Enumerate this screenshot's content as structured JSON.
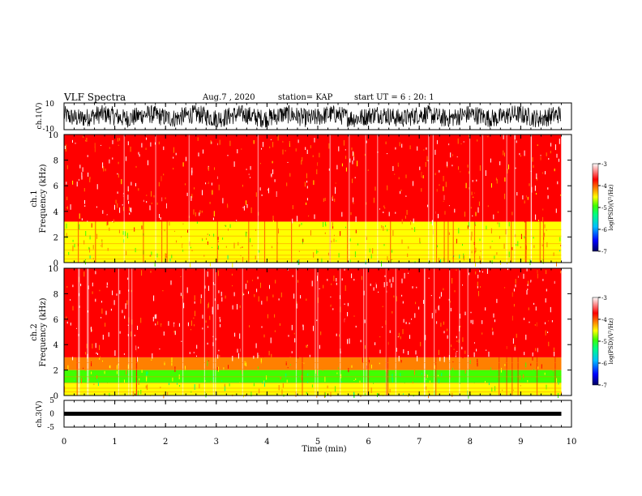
{
  "header": {
    "title": "VLF Spectra",
    "date": "Aug.7 , 2020",
    "station": "station= KAP",
    "start": "start UT = 6 : 20: 1"
  },
  "chart_data": [
    {
      "type": "line",
      "panel": "ch1_waveform",
      "ylabel": "ch.1(V)",
      "y_ticks": [
        "10",
        "-10"
      ],
      "ylim": [
        -10,
        10
      ],
      "xlim": [
        0,
        10
      ],
      "data_end_min": 9.8,
      "description_of_signal": "noisy waveform fluctuating roughly between -8 and 8 V"
    },
    {
      "type": "heatmap",
      "panel": "ch1_spectrogram",
      "ylabel_top": "ch.1",
      "ylabel_bottom": "Frequency (kHz)",
      "y_ticks": [
        "0",
        "2",
        "4",
        "6",
        "8",
        "10"
      ],
      "ylim": [
        0,
        10
      ],
      "xlim": [
        0,
        10
      ],
      "data_end_min": 9.8,
      "colorbar": {
        "label": "log(PSD)(V²/Hz)",
        "ticks": [
          "-3",
          "-4",
          "-5",
          "-6",
          "-7"
        ],
        "range": [
          -7,
          -3
        ]
      },
      "bands_khz": [
        {
          "from": 0.0,
          "to": 1.2,
          "level": -4.6
        },
        {
          "from": 1.2,
          "to": 3.2,
          "level": -4.5
        },
        {
          "from": 3.2,
          "to": 10.0,
          "level": -3.7
        }
      ]
    },
    {
      "type": "heatmap",
      "panel": "ch2_spectrogram",
      "ylabel_top": "ch.2",
      "ylabel_bottom": "Frequency (kHz)",
      "y_ticks": [
        "0",
        "2",
        "4",
        "6",
        "8",
        "10"
      ],
      "ylim": [
        0,
        10
      ],
      "xlim": [
        0,
        10
      ],
      "data_end_min": 9.8,
      "colorbar": {
        "label": "log(PSD)(V²/Hz)",
        "ticks": [
          "-3",
          "-4",
          "-5",
          "-6",
          "-7"
        ],
        "range": [
          -7,
          -3
        ]
      },
      "bands_khz": [
        {
          "from": 0.0,
          "to": 1.0,
          "level": -4.6
        },
        {
          "from": 1.0,
          "to": 2.0,
          "level": -4.9
        },
        {
          "from": 2.0,
          "to": 3.0,
          "level": -4.3
        },
        {
          "from": 3.0,
          "to": 10.0,
          "level": -3.5
        }
      ]
    },
    {
      "type": "line",
      "panel": "ch3_waveform",
      "ylabel": "ch.3(V)",
      "y_ticks": [
        "5",
        "0",
        "-5"
      ],
      "ylim": [
        -5,
        5
      ],
      "xlim": [
        0,
        10
      ],
      "data_end_min": 9.8,
      "level_v": 0,
      "description_of_signal": "flat dense trace near 0 V with small spread"
    }
  ],
  "x_axis": {
    "label": "Time (min)",
    "ticks": [
      "0",
      "1",
      "2",
      "3",
      "4",
      "5",
      "6",
      "7",
      "8",
      "9",
      "10"
    ]
  },
  "colors": {
    "cmap": [
      "#000080",
      "#0000ff",
      "#00bfff",
      "#00ff80",
      "#40ff00",
      "#ffff00",
      "#ff8000",
      "#ff0000",
      "#ffffff"
    ]
  }
}
